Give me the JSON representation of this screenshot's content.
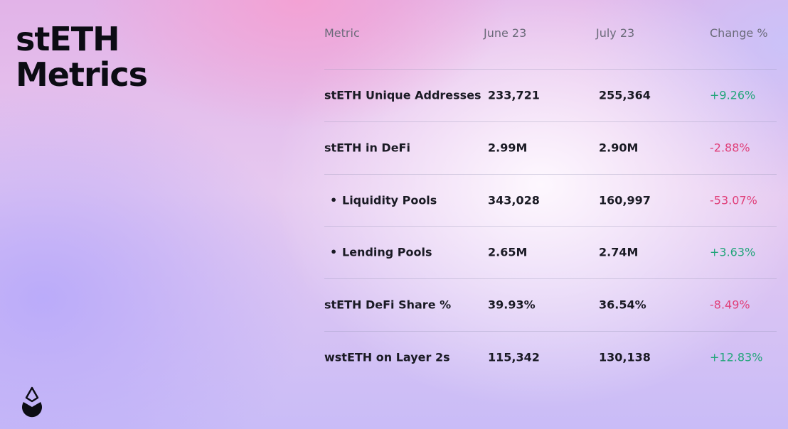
{
  "title_line1": "stETH",
  "title_line2": "Metrics",
  "logo": "lido-drop-icon",
  "colors": {
    "positive": "#22a57a",
    "negative": "#e0407a"
  },
  "table": {
    "headers": [
      "Metric",
      "June 23",
      "July 23",
      "Change %"
    ],
    "rows": [
      {
        "metric": "stETH Unique Addresses",
        "june": "233,721",
        "july": "255,364",
        "change": "+9.26%",
        "dir": "pos",
        "bullet": false
      },
      {
        "metric": "stETH  in DeFi",
        "june": "2.99M",
        "july": "2.90M",
        "change": "-2.88%",
        "dir": "neg",
        "bullet": false
      },
      {
        "metric": "Liquidity Pools",
        "june": "343,028",
        "july": "160,997",
        "change": "-53.07%",
        "dir": "neg",
        "bullet": true
      },
      {
        "metric": "Lending Pools",
        "june": "2.65M",
        "july": "2.74M",
        "change": "+3.63%",
        "dir": "pos",
        "bullet": true
      },
      {
        "metric": "stETH DeFi Share %",
        "june": "39.93%",
        "july": "36.54%",
        "change": "-8.49%",
        "dir": "neg",
        "bullet": false
      },
      {
        "metric": "wstETH on Layer 2s",
        "june": "115,342",
        "july": "130,138",
        "change": "+12.83%",
        "dir": "pos",
        "bullet": false
      }
    ]
  }
}
